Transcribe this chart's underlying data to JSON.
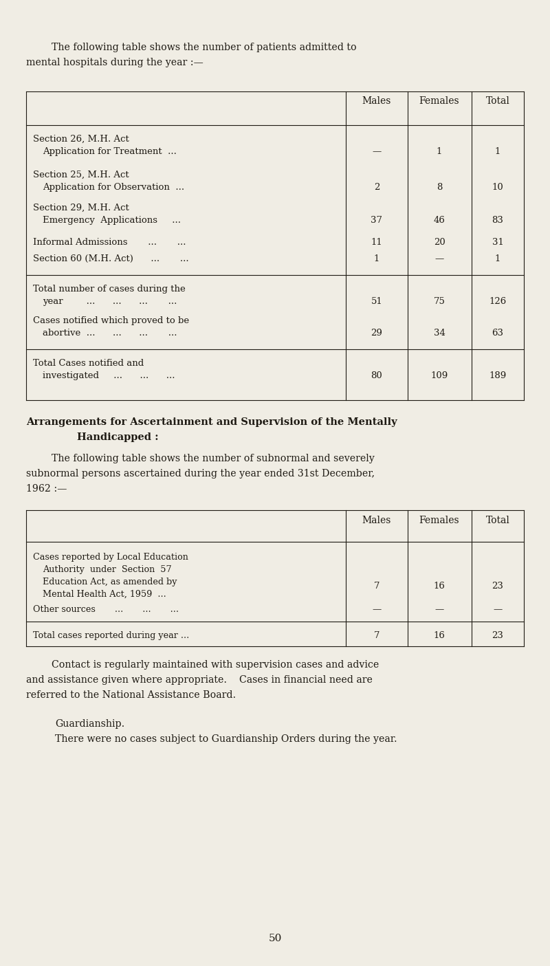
{
  "bg_color": "#f0ede4",
  "text_color": "#1e1a13",
  "fig_width": 8.0,
  "fig_height": 14.05,
  "dpi": 100
}
